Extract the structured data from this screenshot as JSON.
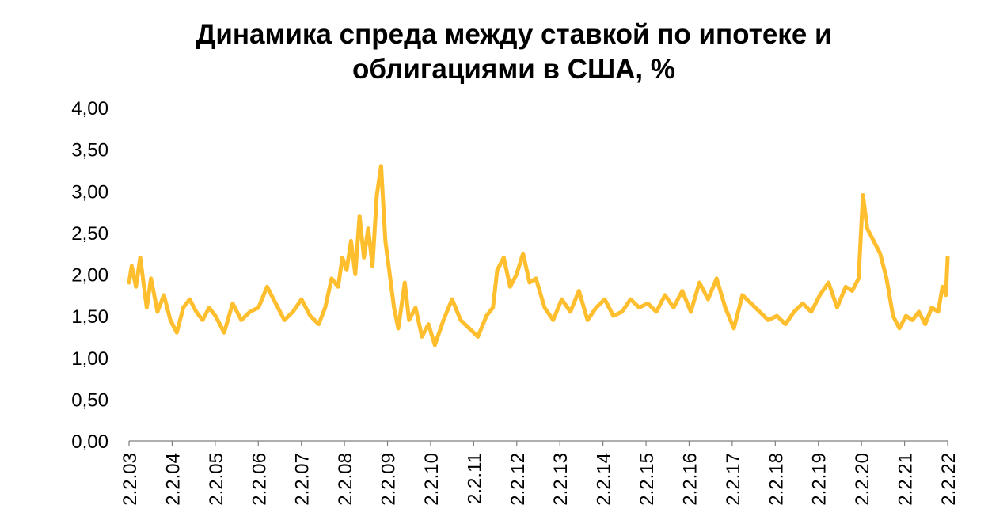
{
  "chart_data": {
    "type": "line",
    "title_lines": [
      "Динамика спреда между ставкой по ипотеке и",
      "облигациями в США, %"
    ],
    "xlabel": "",
    "ylabel": "",
    "ylim": [
      0,
      4
    ],
    "y_ticks": [
      "0,00",
      "0,50",
      "1,00",
      "1,50",
      "2,00",
      "2,50",
      "3,00",
      "3,50",
      "4,00"
    ],
    "x_ticks": [
      "2.2.03",
      "2.2.04",
      "2.2.05",
      "2.2.06",
      "2.2.07",
      "2.2.08",
      "2.2.09",
      "2.2.10",
      "2.2.11",
      "2.2.12",
      "2.2.13",
      "2.2.14",
      "2.2.15",
      "2.2.16",
      "2.2.17",
      "2.2.18",
      "2.2.19",
      "2.2.20",
      "2.2.21",
      "2.2.22"
    ],
    "grid": false,
    "legend": "none",
    "series": [
      {
        "color": "#FFBE2E",
        "x": [
          2003.09,
          2003.15,
          2003.25,
          2003.35,
          2003.5,
          2003.6,
          2003.75,
          2003.9,
          2004.05,
          2004.2,
          2004.35,
          2004.5,
          2004.65,
          2004.8,
          2004.95,
          2005.1,
          2005.3,
          2005.5,
          2005.7,
          2005.9,
          2006.1,
          2006.3,
          2006.5,
          2006.7,
          2006.9,
          2007.1,
          2007.3,
          2007.5,
          2007.65,
          2007.8,
          2007.95,
          2008.05,
          2008.15,
          2008.25,
          2008.35,
          2008.45,
          2008.55,
          2008.65,
          2008.75,
          2008.85,
          2008.95,
          2009.05,
          2009.15,
          2009.25,
          2009.35,
          2009.5,
          2009.6,
          2009.75,
          2009.9,
          2010.05,
          2010.2,
          2010.4,
          2010.6,
          2010.8,
          2011.0,
          2011.2,
          2011.4,
          2011.55,
          2011.65,
          2011.8,
          2011.95,
          2012.1,
          2012.25,
          2012.4,
          2012.55,
          2012.75,
          2012.95,
          2013.15,
          2013.35,
          2013.55,
          2013.75,
          2013.95,
          2014.15,
          2014.35,
          2014.55,
          2014.75,
          2014.95,
          2015.15,
          2015.35,
          2015.55,
          2015.75,
          2015.95,
          2016.15,
          2016.35,
          2016.55,
          2016.75,
          2016.95,
          2017.15,
          2017.35,
          2017.55,
          2017.75,
          2017.95,
          2018.15,
          2018.35,
          2018.55,
          2018.75,
          2018.95,
          2019.15,
          2019.35,
          2019.55,
          2019.75,
          2019.9,
          2020.05,
          2020.15,
          2020.25,
          2020.4,
          2020.55,
          2020.7,
          2020.85,
          2021.0,
          2021.15,
          2021.3,
          2021.45,
          2021.6,
          2021.75,
          2021.9,
          2022.0,
          2022.08,
          2022.12
        ],
        "values": [
          1.9,
          2.1,
          1.85,
          2.2,
          1.6,
          1.95,
          1.55,
          1.75,
          1.45,
          1.3,
          1.6,
          1.7,
          1.55,
          1.45,
          1.6,
          1.5,
          1.3,
          1.65,
          1.45,
          1.55,
          1.6,
          1.85,
          1.65,
          1.45,
          1.55,
          1.7,
          1.5,
          1.4,
          1.6,
          1.95,
          1.85,
          2.2,
          2.05,
          2.4,
          2.0,
          2.7,
          2.2,
          2.55,
          2.1,
          2.95,
          3.3,
          2.4,
          2.0,
          1.6,
          1.35,
          1.9,
          1.45,
          1.6,
          1.25,
          1.4,
          1.15,
          1.45,
          1.7,
          1.45,
          1.35,
          1.25,
          1.5,
          1.6,
          2.05,
          2.2,
          1.85,
          2.0,
          2.25,
          1.9,
          1.95,
          1.6,
          1.45,
          1.7,
          1.55,
          1.8,
          1.45,
          1.6,
          1.7,
          1.5,
          1.55,
          1.7,
          1.6,
          1.65,
          1.55,
          1.75,
          1.6,
          1.8,
          1.55,
          1.9,
          1.7,
          1.95,
          1.6,
          1.35,
          1.75,
          1.65,
          1.55,
          1.45,
          1.5,
          1.4,
          1.55,
          1.65,
          1.55,
          1.75,
          1.9,
          1.6,
          1.85,
          1.8,
          1.95,
          2.95,
          2.55,
          2.4,
          2.25,
          1.95,
          1.5,
          1.35,
          1.5,
          1.45,
          1.55,
          1.4,
          1.6,
          1.55,
          1.85,
          1.75,
          2.2
        ]
      }
    ]
  }
}
